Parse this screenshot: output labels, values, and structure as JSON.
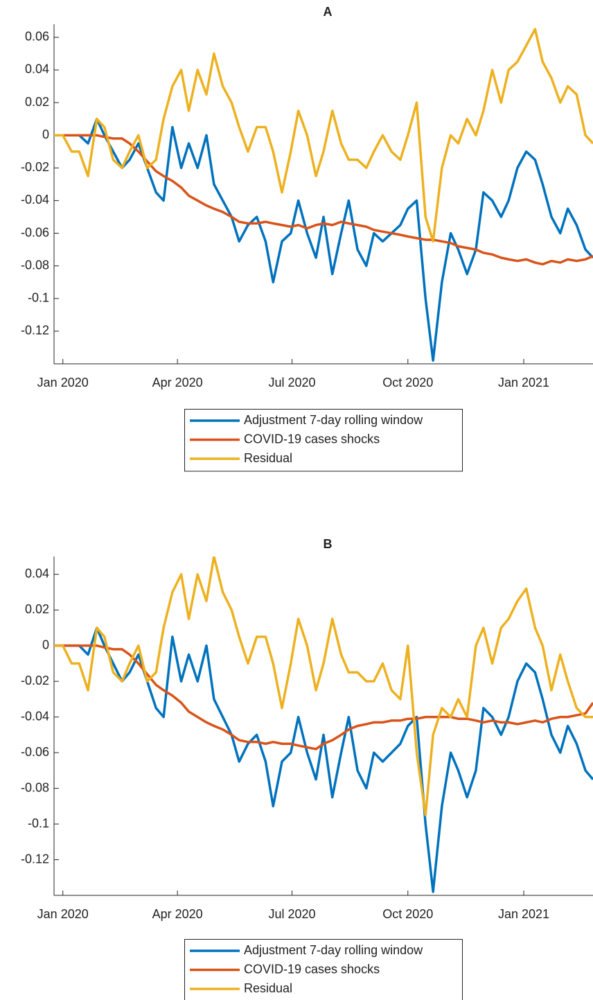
{
  "chart_data": [
    {
      "type": "line",
      "title": "A",
      "legend": "below",
      "grid": false,
      "x": [
        -7,
        0,
        7,
        13,
        20,
        27,
        33,
        40,
        47,
        53,
        60,
        67,
        74,
        80,
        87,
        94,
        100,
        107,
        114,
        120,
        127,
        134,
        140,
        147,
        154,
        161,
        167,
        174,
        181,
        187,
        194,
        201,
        207,
        214,
        221,
        227,
        234,
        241,
        247,
        254,
        261,
        268,
        274,
        281,
        288,
        294,
        301,
        308,
        314,
        321,
        328,
        334,
        341,
        348,
        354,
        361,
        368,
        375,
        381,
        388,
        395,
        401,
        408,
        415,
        421
      ],
      "xlim": [
        -7,
        421
      ],
      "xticks": [
        {
          "value": 0,
          "label": "Jan 2020"
        },
        {
          "value": 91,
          "label": "Apr 2020"
        },
        {
          "value": 182,
          "label": "Jul 2020"
        },
        {
          "value": 274,
          "label": "Oct 2020"
        },
        {
          "value": 366,
          "label": "Jan 2021"
        }
      ],
      "ylim": [
        -0.14,
        0.068
      ],
      "yticks": [
        0.06,
        0.04,
        0.02,
        0,
        -0.02,
        -0.04,
        -0.06,
        -0.08,
        -0.1,
        -0.12
      ],
      "series": [
        {
          "name": "Adjustment 7-day rolling window",
          "color": "#0072bd",
          "values": [
            0,
            0,
            0,
            0,
            -0.005,
            0.01,
            0,
            -0.01,
            -0.02,
            -0.015,
            -0.005,
            -0.02,
            -0.035,
            -0.04,
            0.005,
            -0.02,
            -0.005,
            -0.02,
            0,
            -0.03,
            -0.04,
            -0.05,
            -0.065,
            -0.055,
            -0.05,
            -0.065,
            -0.09,
            -0.065,
            -0.06,
            -0.04,
            -0.06,
            -0.075,
            -0.05,
            -0.085,
            -0.06,
            -0.04,
            -0.07,
            -0.08,
            -0.06,
            -0.065,
            -0.06,
            -0.055,
            -0.045,
            -0.04,
            -0.1,
            -0.138,
            -0.09,
            -0.06,
            -0.07,
            -0.085,
            -0.07,
            -0.035,
            -0.04,
            -0.05,
            -0.04,
            -0.02,
            -0.01,
            -0.015,
            -0.03,
            -0.05,
            -0.06,
            -0.045,
            -0.055,
            -0.07,
            -0.075
          ]
        },
        {
          "name": "COVID-19 cases shocks",
          "color": "#d95319",
          "values": [
            0,
            0,
            0,
            0,
            0,
            0,
            -0.001,
            -0.002,
            -0.002,
            -0.005,
            -0.01,
            -0.016,
            -0.022,
            -0.025,
            -0.028,
            -0.032,
            -0.037,
            -0.04,
            -0.043,
            -0.045,
            -0.047,
            -0.05,
            -0.053,
            -0.054,
            -0.054,
            -0.053,
            -0.054,
            -0.055,
            -0.056,
            -0.055,
            -0.057,
            -0.055,
            -0.054,
            -0.055,
            -0.053,
            -0.054,
            -0.055,
            -0.056,
            -0.058,
            -0.059,
            -0.06,
            -0.061,
            -0.062,
            -0.063,
            -0.064,
            -0.064,
            -0.065,
            -0.066,
            -0.068,
            -0.069,
            -0.07,
            -0.072,
            -0.073,
            -0.075,
            -0.076,
            -0.077,
            -0.076,
            -0.078,
            -0.079,
            -0.077,
            -0.078,
            -0.076,
            -0.077,
            -0.076,
            -0.074
          ]
        },
        {
          "name": "Residual",
          "color": "#edb120",
          "values": [
            0,
            0,
            -0.01,
            -0.01,
            -0.025,
            0.01,
            0.005,
            -0.015,
            -0.02,
            -0.01,
            0,
            -0.02,
            -0.015,
            0.01,
            0.03,
            0.04,
            0.015,
            0.04,
            0.025,
            0.05,
            0.03,
            0.02,
            0.005,
            -0.01,
            0.005,
            0.005,
            -0.01,
            -0.035,
            -0.01,
            0.015,
            0,
            -0.025,
            -0.01,
            0.015,
            -0.005,
            -0.015,
            -0.015,
            -0.02,
            -0.01,
            0,
            -0.01,
            -0.015,
            0,
            0.02,
            -0.05,
            -0.065,
            -0.02,
            0,
            -0.005,
            0.01,
            0,
            0.015,
            0.04,
            0.02,
            0.04,
            0.045,
            0.055,
            0.065,
            0.045,
            0.035,
            0.02,
            0.03,
            0.025,
            0,
            -0.005
          ]
        }
      ]
    },
    {
      "type": "line",
      "title": "B",
      "legend": "below",
      "grid": false,
      "x": [
        -7,
        0,
        7,
        13,
        20,
        27,
        33,
        40,
        47,
        53,
        60,
        67,
        74,
        80,
        87,
        94,
        100,
        107,
        114,
        120,
        127,
        134,
        140,
        147,
        154,
        161,
        167,
        174,
        181,
        187,
        194,
        201,
        207,
        214,
        221,
        227,
        234,
        241,
        247,
        254,
        261,
        268,
        274,
        281,
        288,
        294,
        301,
        308,
        314,
        321,
        328,
        334,
        341,
        348,
        354,
        361,
        368,
        375,
        381,
        388,
        395,
        401,
        408,
        415,
        421
      ],
      "xlim": [
        -7,
        421
      ],
      "xticks": [
        {
          "value": 0,
          "label": "Jan 2020"
        },
        {
          "value": 91,
          "label": "Apr 2020"
        },
        {
          "value": 182,
          "label": "Jul 2020"
        },
        {
          "value": 274,
          "label": "Oct 2020"
        },
        {
          "value": 366,
          "label": "Jan 2021"
        }
      ],
      "ylim": [
        -0.14,
        0.05
      ],
      "yticks": [
        0.04,
        0.02,
        0,
        -0.02,
        -0.04,
        -0.06,
        -0.08,
        -0.1,
        -0.12
      ],
      "series": [
        {
          "name": "Adjustment 7-day rolling window",
          "color": "#0072bd",
          "values": [
            0,
            0,
            0,
            0,
            -0.005,
            0.01,
            0,
            -0.01,
            -0.02,
            -0.015,
            -0.005,
            -0.02,
            -0.035,
            -0.04,
            0.005,
            -0.02,
            -0.005,
            -0.02,
            0,
            -0.03,
            -0.04,
            -0.05,
            -0.065,
            -0.055,
            -0.05,
            -0.065,
            -0.09,
            -0.065,
            -0.06,
            -0.04,
            -0.06,
            -0.075,
            -0.05,
            -0.085,
            -0.06,
            -0.04,
            -0.07,
            -0.08,
            -0.06,
            -0.065,
            -0.06,
            -0.055,
            -0.045,
            -0.04,
            -0.1,
            -0.138,
            -0.09,
            -0.06,
            -0.07,
            -0.085,
            -0.07,
            -0.035,
            -0.04,
            -0.05,
            -0.04,
            -0.02,
            -0.01,
            -0.015,
            -0.03,
            -0.05,
            -0.06,
            -0.045,
            -0.055,
            -0.07,
            -0.075
          ]
        },
        {
          "name": "COVID-19 cases shocks",
          "color": "#d95319",
          "values": [
            0,
            0,
            0,
            0,
            0,
            0,
            -0.001,
            -0.002,
            -0.002,
            -0.005,
            -0.01,
            -0.016,
            -0.022,
            -0.025,
            -0.028,
            -0.032,
            -0.037,
            -0.04,
            -0.043,
            -0.045,
            -0.047,
            -0.05,
            -0.053,
            -0.054,
            -0.054,
            -0.055,
            -0.054,
            -0.055,
            -0.055,
            -0.056,
            -0.057,
            -0.058,
            -0.055,
            -0.053,
            -0.05,
            -0.047,
            -0.045,
            -0.044,
            -0.043,
            -0.043,
            -0.042,
            -0.042,
            -0.041,
            -0.041,
            -0.04,
            -0.04,
            -0.04,
            -0.04,
            -0.041,
            -0.041,
            -0.042,
            -0.043,
            -0.042,
            -0.043,
            -0.043,
            -0.044,
            -0.043,
            -0.042,
            -0.043,
            -0.041,
            -0.04,
            -0.04,
            -0.039,
            -0.038,
            -0.032
          ]
        },
        {
          "name": "Residual",
          "color": "#edb120",
          "values": [
            0,
            0,
            -0.01,
            -0.01,
            -0.025,
            0.01,
            0.005,
            -0.015,
            -0.02,
            -0.01,
            0,
            -0.02,
            -0.015,
            0.01,
            0.03,
            0.04,
            0.015,
            0.04,
            0.025,
            0.05,
            0.03,
            0.02,
            0.005,
            -0.01,
            0.005,
            0.005,
            -0.01,
            -0.035,
            -0.01,
            0.015,
            0,
            -0.025,
            -0.01,
            0.015,
            -0.005,
            -0.015,
            -0.015,
            -0.02,
            -0.02,
            -0.01,
            -0.025,
            -0.03,
            0,
            -0.06,
            -0.095,
            -0.05,
            -0.035,
            -0.04,
            -0.03,
            -0.04,
            0,
            0.01,
            -0.01,
            0.01,
            0.015,
            0.025,
            0.032,
            0.01,
            0,
            -0.025,
            -0.005,
            -0.02,
            -0.035,
            -0.04,
            -0.04
          ]
        }
      ]
    }
  ]
}
